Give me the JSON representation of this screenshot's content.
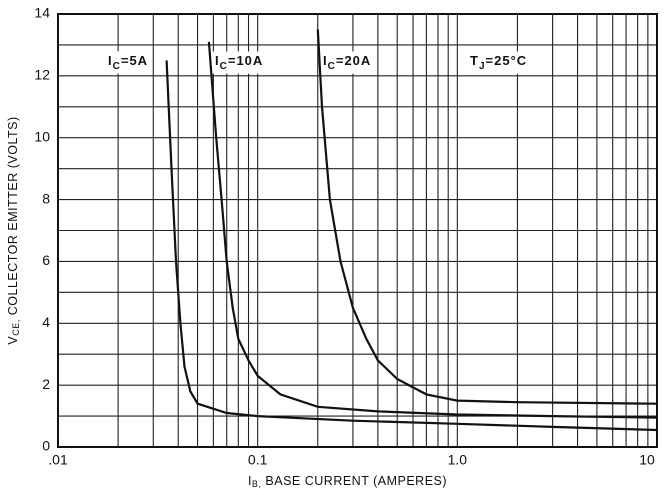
{
  "chart_data": {
    "type": "line",
    "x_label": {
      "main": "I",
      "sub": "B,",
      "text": " BASE CURRENT (AMPERES)"
    },
    "y_label": {
      "main": "V",
      "sub": "CE,",
      "text": " COLLECTOR EMITTER (VOLTS)"
    },
    "annotations": [
      {
        "main": "I",
        "sub": "C",
        "text": "=5A"
      },
      {
        "main": "I",
        "sub": "C",
        "text": "=10A"
      },
      {
        "main": "I",
        "sub": "C",
        "text": "=20A"
      },
      {
        "main": "T",
        "sub": "J",
        "text": "=25°C"
      }
    ],
    "x_log": true,
    "xlim": [
      0.01,
      10
    ],
    "xticks": [
      {
        "value": 0.01,
        "label": ".01"
      },
      {
        "value": 0.1,
        "label": "0.1"
      },
      {
        "value": 1,
        "label": "1.0"
      },
      10
    ],
    "x_minor_grid": [
      0.02,
      0.03,
      0.04,
      0.05,
      0.06,
      0.07,
      0.08,
      0.09,
      0.2,
      0.3,
      0.4,
      0.5,
      0.6,
      0.7,
      0.8,
      0.9,
      2,
      3,
      4,
      5,
      6,
      7,
      8,
      9
    ],
    "ylim": [
      0,
      14
    ],
    "yticks": [
      0,
      2,
      4,
      6,
      8,
      10,
      12,
      14
    ],
    "y_minor_grid": [
      1,
      3,
      5,
      7,
      9,
      11,
      13
    ],
    "grid": true,
    "series": [
      {
        "color": "#111111",
        "x": [
          0.035,
          0.037,
          0.039,
          0.041,
          0.043,
          0.046,
          0.05,
          0.07,
          0.1,
          0.3,
          1,
          3,
          10
        ],
        "values": [
          12.5,
          9,
          6,
          4,
          2.6,
          1.8,
          1.4,
          1.1,
          1.0,
          0.85,
          0.75,
          0.65,
          0.55
        ]
      },
      {
        "color": "#111111",
        "x": [
          0.057,
          0.062,
          0.066,
          0.07,
          0.075,
          0.08,
          0.09,
          0.1,
          0.13,
          0.2,
          0.4,
          1,
          3,
          10
        ],
        "values": [
          13.1,
          10,
          8,
          6,
          4.5,
          3.5,
          2.8,
          2.3,
          1.7,
          1.3,
          1.15,
          1.05,
          1.0,
          0.95
        ]
      },
      {
        "color": "#111111",
        "x": [
          0.2,
          0.21,
          0.23,
          0.26,
          0.3,
          0.35,
          0.4,
          0.5,
          0.7,
          1,
          2,
          10
        ],
        "values": [
          13.5,
          11,
          8,
          6,
          4.5,
          3.5,
          2.8,
          2.2,
          1.7,
          1.5,
          1.45,
          1.4
        ]
      }
    ]
  }
}
